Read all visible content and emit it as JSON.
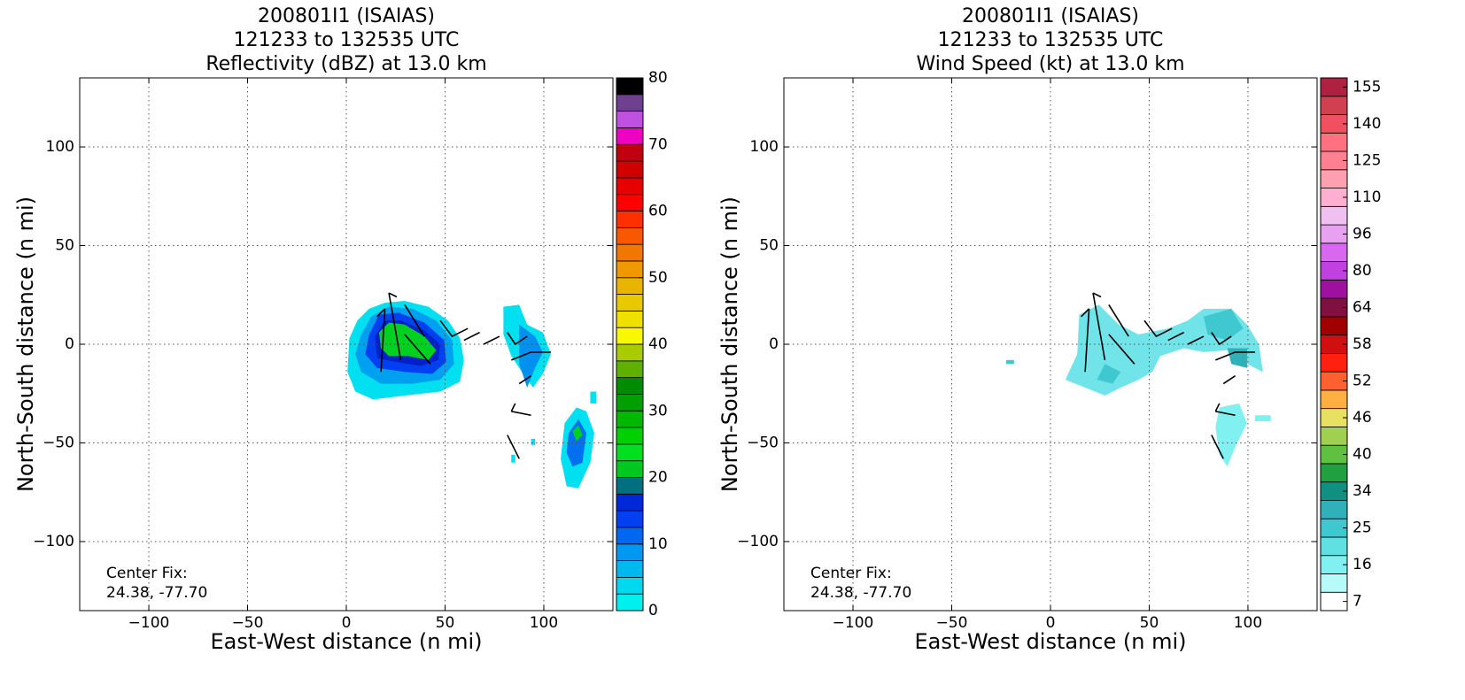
{
  "chart_data": [
    {
      "type": "contour",
      "title": [
        "200801I1 (ISAIAS)",
        "121233 to 132535 UTC",
        "Reflectivity (dBZ) at 13.0 km"
      ],
      "xlabel": "East-West distance (n mi)",
      "ylabel": "North-South distance (n mi)",
      "xlim": [
        -135,
        135
      ],
      "ylim": [
        -135,
        135
      ],
      "xticks": [
        {
          "value": -100,
          "label": "−100"
        },
        {
          "value": -50,
          "label": "−50"
        },
        0,
        50,
        100
      ],
      "yticks": [
        {
          "value": -100,
          "label": "−100"
        },
        {
          "value": -50,
          "label": "−50"
        },
        0,
        50,
        100
      ],
      "grid": true,
      "annotation": [
        "Center Fix:",
        "24.38, -77.70"
      ],
      "colorbar": {
        "clim": [
          0,
          80
        ],
        "ticks": [
          0,
          10,
          20,
          30,
          40,
          50,
          60,
          70,
          80
        ],
        "colors": [
          "#00f0f0",
          "#00d8f0",
          "#00b8f0",
          "#0098f0",
          "#0068f0",
          "#0040f0",
          "#0028d8",
          "#007080",
          "#00c820",
          "#00e020",
          "#00d000",
          "#00b800",
          "#00a000",
          "#008c00",
          "#60b000",
          "#a8cc00",
          "#f8f800",
          "#f0e000",
          "#e8c800",
          "#e8b400",
          "#f09800",
          "#f07800",
          "#f85800",
          "#ff3000",
          "#ff0000",
          "#e80000",
          "#d00000",
          "#c00010",
          "#f000c0",
          "#c050e0",
          "#704090",
          "#000000"
        ]
      }
    },
    {
      "type": "contour",
      "title": [
        "200801I1 (ISAIAS)",
        "121233 to 132535 UTC",
        "Wind Speed (kt) at 13.0 km"
      ],
      "xlabel": "East-West distance (n mi)",
      "ylabel": "North-South distance (n mi)",
      "xlim": [
        -135,
        135
      ],
      "ylim": [
        -135,
        135
      ],
      "xticks": [
        {
          "value": -100,
          "label": "−100"
        },
        {
          "value": -50,
          "label": "−50"
        },
        0,
        50,
        100
      ],
      "yticks": [
        {
          "value": -100,
          "label": "−100"
        },
        {
          "value": -50,
          "label": "−50"
        },
        0,
        50,
        100
      ],
      "grid": true,
      "annotation": [
        "Center Fix:",
        "24.38, -77.70"
      ],
      "colorbar": {
        "levels": [
          7,
          10,
          16,
          21,
          25,
          30,
          34,
          37,
          40,
          43,
          46,
          49,
          52,
          55,
          58,
          61,
          64,
          72,
          80,
          88,
          96,
          103,
          110,
          118,
          125,
          133,
          140,
          148,
          155
        ],
        "ticks": [
          7,
          16,
          25,
          34,
          40,
          46,
          52,
          58,
          64,
          80,
          96,
          110,
          125,
          140,
          155
        ],
        "colors": [
          "#ffffff",
          "#b8fafa",
          "#80f0f0",
          "#60e0e0",
          "#40c8d0",
          "#30b0b8",
          "#109080",
          "#20a040",
          "#60c040",
          "#a0d050",
          "#e8e060",
          "#ffb040",
          "#ff6030",
          "#ff2010",
          "#d01010",
          "#a00000",
          "#801040",
          "#a010a0",
          "#c040e0",
          "#d868f0",
          "#e8a0f0",
          "#f0c0f0",
          "#ffb0d0",
          "#ffa0b0",
          "#ff8090",
          "#ff7080",
          "#f05060",
          "#d04050",
          "#b02040"
        ]
      }
    }
  ]
}
